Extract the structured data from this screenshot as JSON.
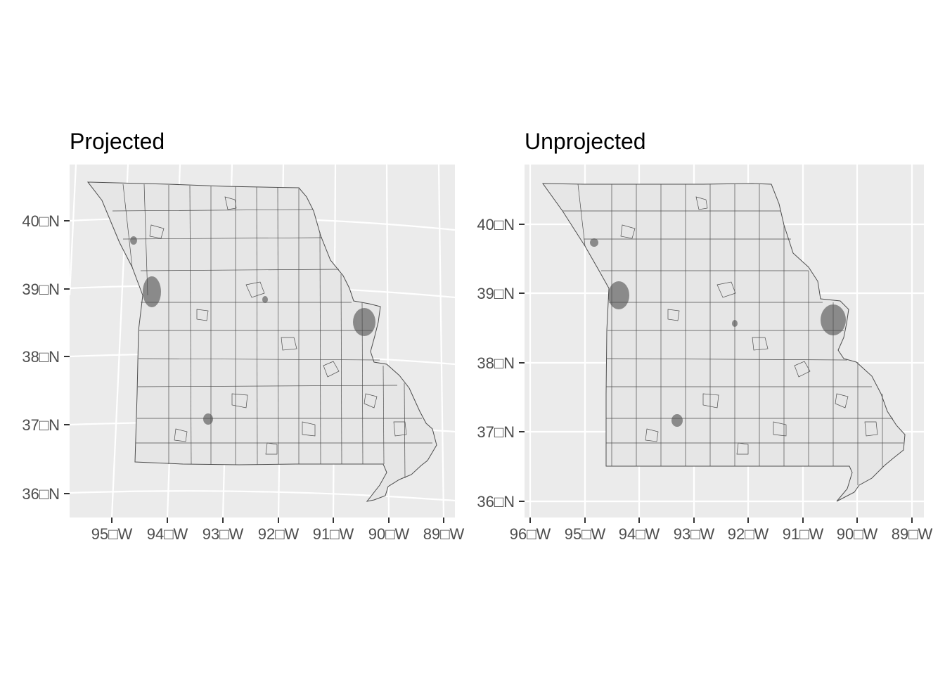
{
  "panels": [
    {
      "title": "Projected",
      "y_ticks": [
        "40□N",
        "39□N",
        "38□N",
        "37□N",
        "36□N"
      ],
      "x_ticks": [
        "95□W",
        "94□W",
        "93□W",
        "92□W",
        "91□W",
        "90□W",
        "89□W"
      ]
    },
    {
      "title": "Unprojected",
      "y_ticks": [
        "40□N",
        "39□N",
        "38□N",
        "37□N",
        "36□N"
      ],
      "x_ticks": [
        "96□W",
        "95□W",
        "94□W",
        "93□W",
        "92□W",
        "91□W",
        "90□W",
        "89□W"
      ]
    }
  ],
  "colors": {
    "panel_background": "#ebebeb",
    "gridline": "#ffffff",
    "state_fill": "#e6e6e6",
    "boundary": "#4d4d4d",
    "tick_text": "#4d4d4d"
  }
}
